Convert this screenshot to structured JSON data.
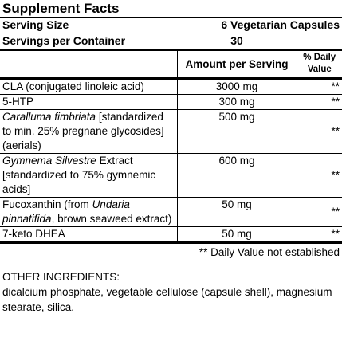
{
  "title": "Supplement Facts",
  "serving_size": {
    "label": "Serving Size",
    "value": "6 Vegetarian Capsules"
  },
  "servings_per_container": {
    "label": "Servings per Container",
    "value": "30"
  },
  "header": {
    "amount": "Amount per Serving",
    "daily_value": "% Daily Value"
  },
  "rows": [
    {
      "name": [
        {
          "text": "CLA (conjugated linoleic acid)",
          "style": "normal"
        }
      ],
      "amount": "3000 mg",
      "daily_value": "**"
    },
    {
      "name": [
        {
          "text": "5-HTP",
          "style": "normal"
        }
      ],
      "amount": "300 mg",
      "daily_value": "**"
    },
    {
      "name": [
        {
          "text": "Caralluma fimbriata",
          "style": "italic"
        },
        {
          "text": "[standardized to min. 25% pregnane glycosides] (aerials)",
          "style": "normal"
        }
      ],
      "amount": "500 mg",
      "daily_value": "**"
    },
    {
      "name": [
        {
          "text": "Gymnema Silvestre",
          "style": "italic"
        },
        {
          "text": "Extract [standardized to 75% gymnemic acids]",
          "style": "normal"
        }
      ],
      "amount": "600 mg",
      "daily_value": "**"
    },
    {
      "name": [
        {
          "text": "Fucoxanthin (from",
          "style": "normal"
        },
        {
          "text": "Undaria pinnatifida",
          "style": "italic"
        },
        {
          "text": ", brown seaweed extract)",
          "style": "normal"
        }
      ],
      "amount": "50 mg",
      "daily_value": "**"
    },
    {
      "name": [
        {
          "text": "7-keto DHEA",
          "style": "normal"
        }
      ],
      "amount": "50 mg",
      "daily_value": "**"
    }
  ],
  "footnote": "** Daily Value not established",
  "other_ingredients": {
    "label": "OTHER INGREDIENTS:",
    "text": "dicalcium phosphate, vegetable cellulose (capsule shell), magnesium stearate, silica."
  }
}
